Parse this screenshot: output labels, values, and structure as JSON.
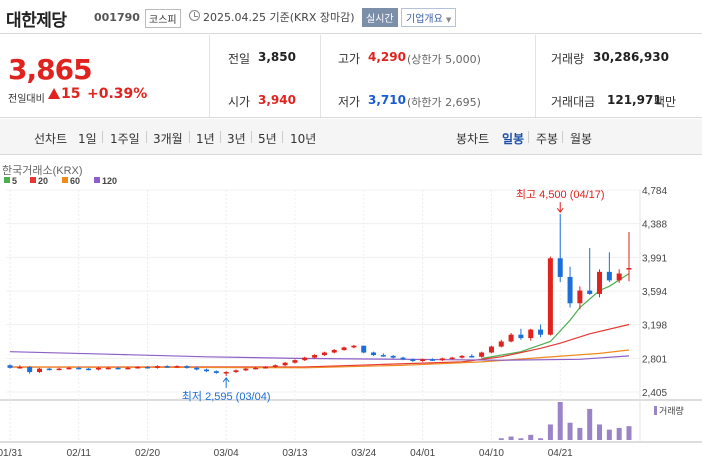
{
  "header": {
    "stock_name": "대한제당",
    "stock_code": "001790",
    "market": "코스피",
    "datetime": "2025.04.25 기준(KRX 장마감)",
    "realtime_label": "실시간",
    "company_info_label": "기업개요"
  },
  "quote": {
    "price": "3,865",
    "change_label": "전일대비",
    "change": "15",
    "change_pct": "+0.39%",
    "prev_close_label": "전일",
    "prev_close": "3,850",
    "open_label": "시가",
    "open": "3,940",
    "high_label": "고가",
    "high": "4,290",
    "upper_limit": "(상한가 5,000)",
    "low_label": "저가",
    "low": "3,710",
    "lower_limit": "(하한가 2,695)",
    "volume_label": "거래량",
    "volume": "30,286,930",
    "amount_label": "거래대금",
    "amount": "121,971",
    "amount_unit": "백만"
  },
  "periods": {
    "line_chart_label": "선차트",
    "line_items": [
      "1일",
      "1주일",
      "3개월",
      "1년",
      "3년",
      "5년",
      "10년"
    ],
    "candle_label": "봉차트",
    "candle_items": [
      "일봉",
      "주봉",
      "월봉"
    ],
    "selected_candle": "일봉"
  },
  "chart_data": {
    "type": "candlestick",
    "source_label": "한국거래소(KRX)",
    "legend": [
      {
        "name": "5",
        "color": "#4caf50"
      },
      {
        "name": "20",
        "color": "#e53935"
      },
      {
        "name": "60",
        "color": "#ef8a1f"
      },
      {
        "name": "120",
        "color": "#8e5fc8"
      }
    ],
    "y_ticks": [
      "4,784",
      "4,388",
      "3,991",
      "3,594",
      "3,198",
      "2,801",
      "2,405"
    ],
    "ylim": [
      2405,
      4784
    ],
    "x_ticks": [
      {
        "label": "01/31",
        "i": 0
      },
      {
        "label": "02/11",
        "i": 7
      },
      {
        "label": "02/20",
        "i": 14
      },
      {
        "label": "03/04",
        "i": 22
      },
      {
        "label": "03/13",
        "i": 29
      },
      {
        "label": "03/24",
        "i": 36
      },
      {
        "label": "04/01",
        "i": 42
      },
      {
        "label": "04/10",
        "i": 49
      },
      {
        "label": "04/21",
        "i": 56
      }
    ],
    "max_annotation": "최고 4,500 (04/17)",
    "min_annotation": "최저 2,595 (03/04)",
    "volume_label": "거래량",
    "candles": [
      [
        2720,
        2730,
        2680,
        2690
      ],
      [
        2690,
        2720,
        2680,
        2700
      ],
      [
        2700,
        2710,
        2620,
        2640
      ],
      [
        2640,
        2690,
        2630,
        2680
      ],
      [
        2680,
        2690,
        2660,
        2670
      ],
      [
        2670,
        2690,
        2660,
        2680
      ],
      [
        2680,
        2700,
        2670,
        2690
      ],
      [
        2690,
        2700,
        2670,
        2680
      ],
      [
        2680,
        2690,
        2660,
        2670
      ],
      [
        2670,
        2700,
        2660,
        2690
      ],
      [
        2690,
        2700,
        2680,
        2690
      ],
      [
        2690,
        2700,
        2670,
        2680
      ],
      [
        2680,
        2700,
        2670,
        2690
      ],
      [
        2690,
        2710,
        2680,
        2700
      ],
      [
        2700,
        2710,
        2680,
        2690
      ],
      [
        2690,
        2720,
        2680,
        2710
      ],
      [
        2710,
        2720,
        2690,
        2700
      ],
      [
        2700,
        2720,
        2690,
        2710
      ],
      [
        2710,
        2720,
        2680,
        2690
      ],
      [
        2690,
        2700,
        2660,
        2670
      ],
      [
        2670,
        2680,
        2640,
        2650
      ],
      [
        2650,
        2660,
        2620,
        2630
      ],
      [
        2630,
        2650,
        2595,
        2640
      ],
      [
        2640,
        2670,
        2630,
        2660
      ],
      [
        2660,
        2690,
        2650,
        2680
      ],
      [
        2680,
        2700,
        2670,
        2690
      ],
      [
        2690,
        2710,
        2680,
        2700
      ],
      [
        2700,
        2730,
        2690,
        2720
      ],
      [
        2720,
        2760,
        2710,
        2750
      ],
      [
        2750,
        2790,
        2740,
        2780
      ],
      [
        2780,
        2820,
        2770,
        2810
      ],
      [
        2810,
        2850,
        2800,
        2840
      ],
      [
        2840,
        2880,
        2830,
        2870
      ],
      [
        2870,
        2910,
        2860,
        2900
      ],
      [
        2900,
        2940,
        2890,
        2930
      ],
      [
        2930,
        2960,
        2920,
        2950
      ],
      [
        2950,
        2950,
        2860,
        2870
      ],
      [
        2870,
        2880,
        2830,
        2840
      ],
      [
        2840,
        2860,
        2820,
        2830
      ],
      [
        2830,
        2840,
        2800,
        2810
      ],
      [
        2810,
        2820,
        2780,
        2790
      ],
      [
        2790,
        2800,
        2760,
        2770
      ],
      [
        2770,
        2800,
        2760,
        2790
      ],
      [
        2790,
        2800,
        2770,
        2780
      ],
      [
        2780,
        2810,
        2770,
        2800
      ],
      [
        2800,
        2820,
        2790,
        2810
      ],
      [
        2810,
        2840,
        2800,
        2830
      ],
      [
        2830,
        2850,
        2810,
        2820
      ],
      [
        2820,
        2880,
        2810,
        2870
      ],
      [
        2870,
        2950,
        2860,
        2940
      ],
      [
        2940,
        3020,
        2930,
        3000
      ],
      [
        3000,
        3100,
        2990,
        3080
      ],
      [
        3080,
        3150,
        3020,
        3040
      ],
      [
        3040,
        3150,
        3010,
        3140
      ],
      [
        3140,
        3200,
        3050,
        3080
      ],
      [
        3080,
        4000,
        3070,
        3980
      ],
      [
        3980,
        4500,
        3700,
        3760
      ],
      [
        3760,
        3880,
        3400,
        3450
      ],
      [
        3450,
        3650,
        3380,
        3600
      ],
      [
        3600,
        4100,
        3550,
        3560
      ],
      [
        3560,
        3850,
        3520,
        3820
      ],
      [
        3820,
        4050,
        3700,
        3720
      ],
      [
        3720,
        3850,
        3690,
        3800
      ],
      [
        3850,
        4290,
        3710,
        3865
      ]
    ],
    "ma": {
      "5": [
        [
          48,
          2800
        ],
        [
          52,
          2880
        ],
        [
          55,
          3000
        ],
        [
          57,
          3250
        ],
        [
          58,
          3400
        ],
        [
          60,
          3600
        ],
        [
          61,
          3650
        ],
        [
          63,
          3800
        ]
      ],
      "20": [
        [
          0,
          2700
        ],
        [
          30,
          2700
        ],
        [
          38,
          2730
        ],
        [
          46,
          2760
        ],
        [
          50,
          2820
        ],
        [
          54,
          2920
        ],
        [
          56,
          2980
        ],
        [
          59,
          3090
        ],
        [
          63,
          3200
        ]
      ],
      "60": [
        [
          0,
          2700
        ],
        [
          30,
          2690
        ],
        [
          40,
          2720
        ],
        [
          48,
          2760
        ],
        [
          54,
          2810
        ],
        [
          60,
          2860
        ],
        [
          63,
          2900
        ]
      ],
      "120": [
        [
          0,
          2880
        ],
        [
          10,
          2850
        ],
        [
          20,
          2820
        ],
        [
          30,
          2800
        ],
        [
          40,
          2790
        ],
        [
          50,
          2780
        ],
        [
          58,
          2790
        ],
        [
          63,
          2830
        ]
      ]
    },
    "volumes": {
      "50": 1,
      "51": 2,
      "52": 1,
      "53": 3,
      "54": 1,
      "55": 9,
      "56": 22,
      "57": 10,
      "58": 7,
      "59": 18,
      "60": 9,
      "61": 6,
      "62": 7,
      "63": 8
    }
  }
}
